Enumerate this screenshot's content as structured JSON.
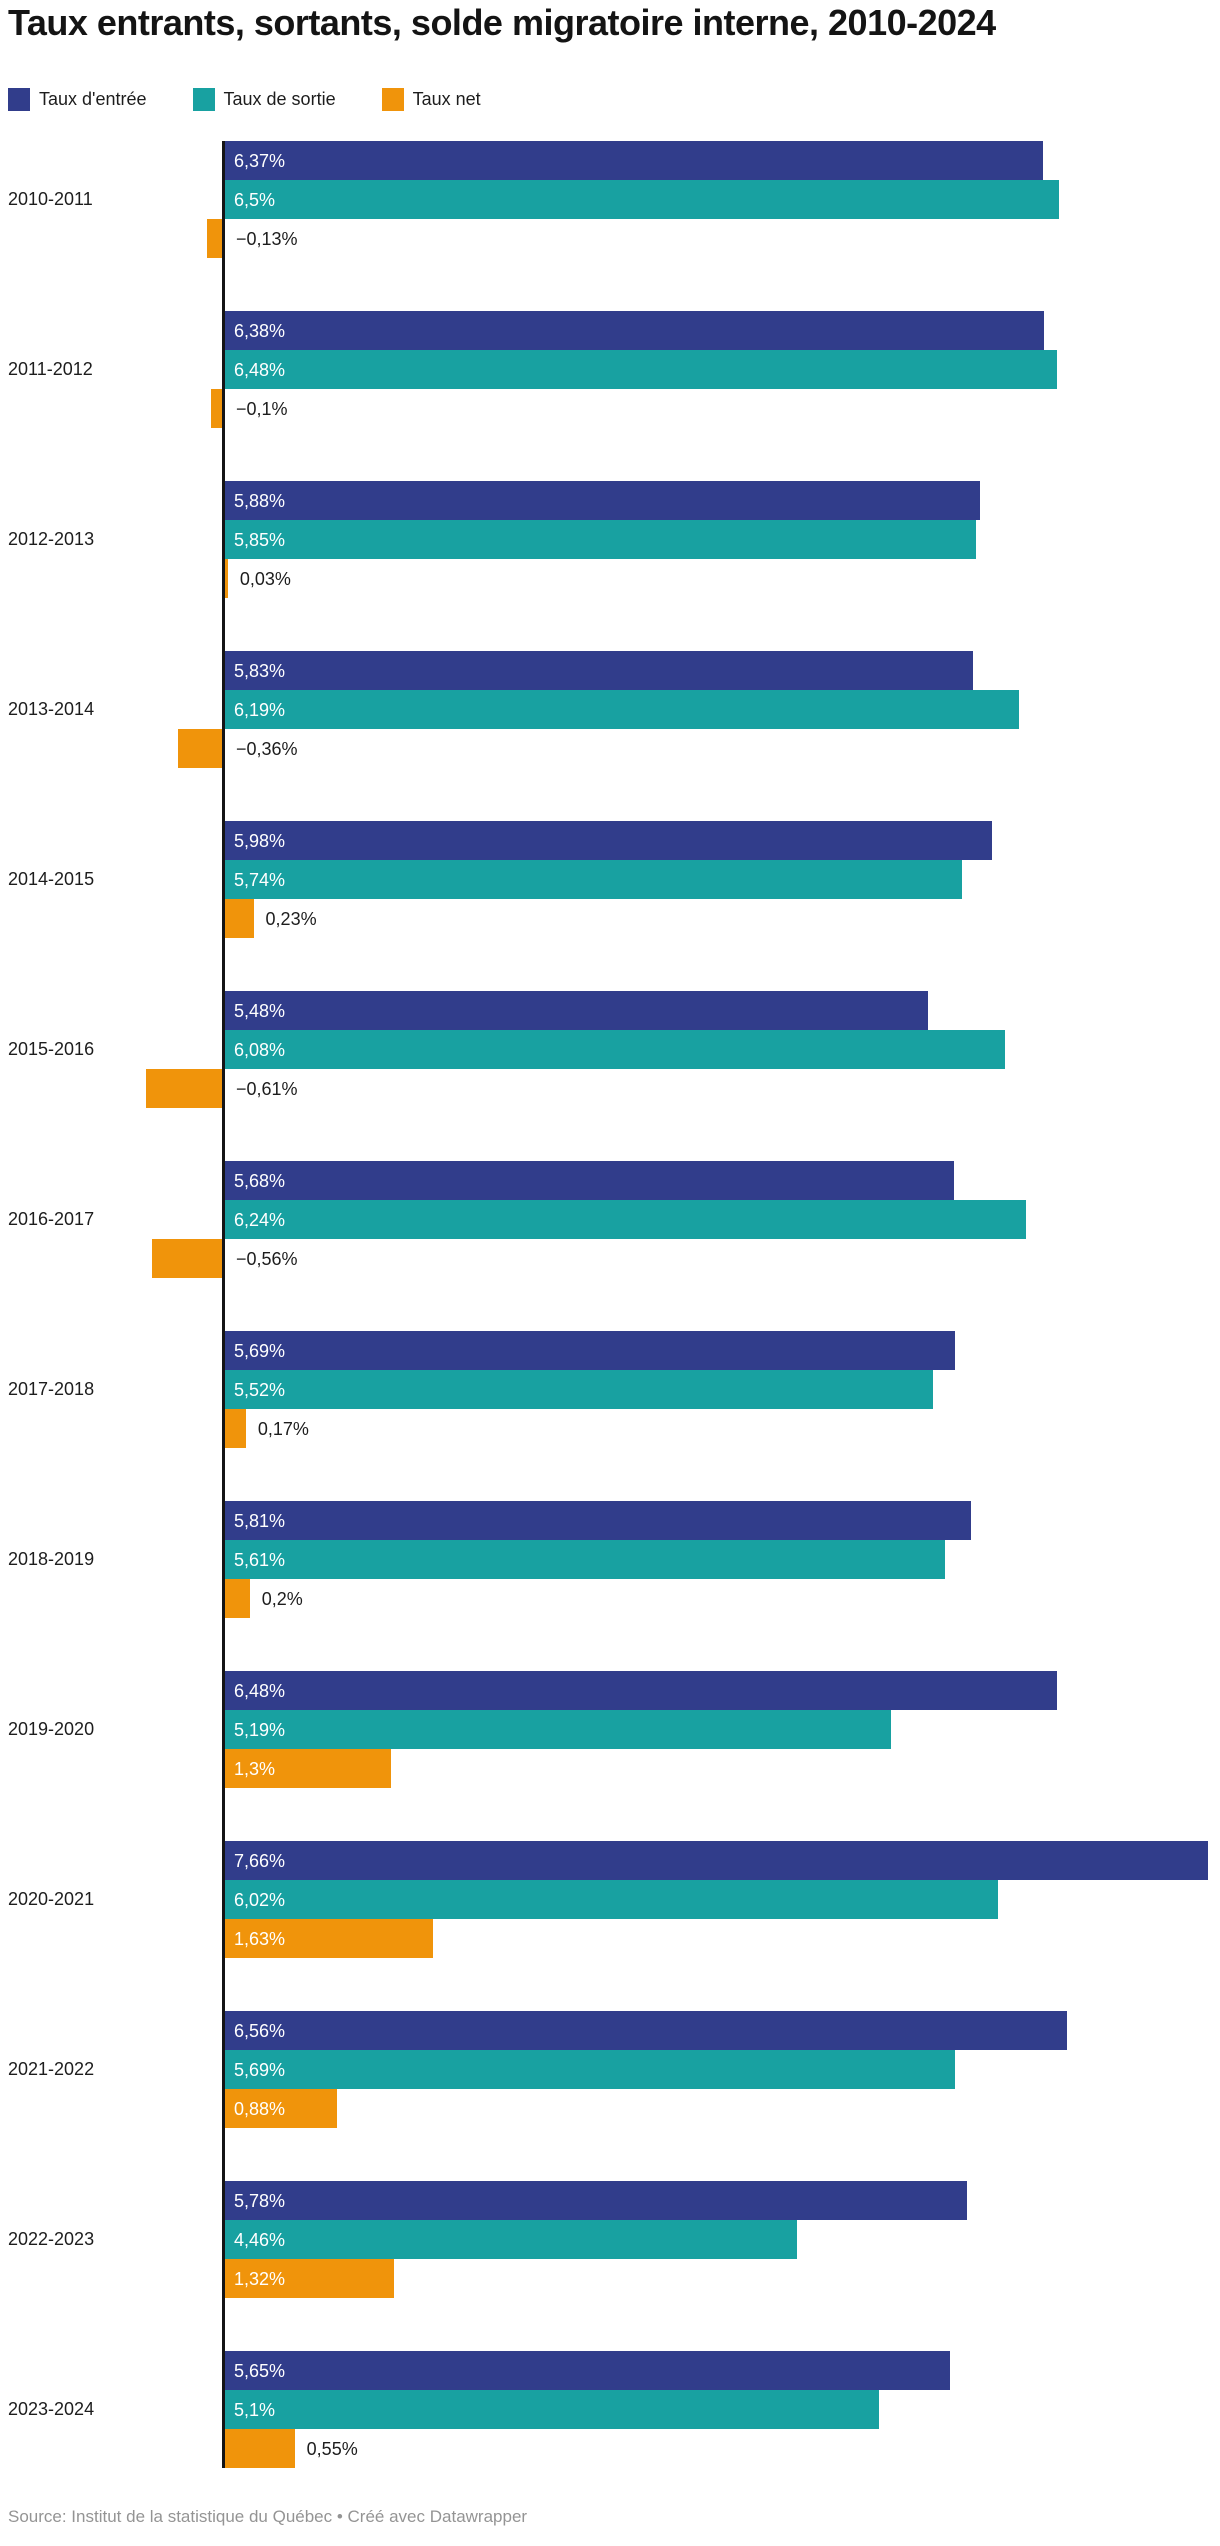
{
  "title": "Taux entrants, sortants, solde migratoire interne, 2010-2024",
  "legend": {
    "items": [
      {
        "key": "entree",
        "label": "Taux d'entrée",
        "color": "#313d8b"
      },
      {
        "key": "sortie",
        "label": "Taux de sortie",
        "color": "#18a1a1"
      },
      {
        "key": "net",
        "label": "Taux net",
        "color": "#f0940b"
      }
    ]
  },
  "chart_data": {
    "type": "bar",
    "orientation": "horizontal",
    "grouped": true,
    "title": "Taux entrants, sortants, solde migratoire interne, 2010-2024",
    "xlabel": "",
    "ylabel": "",
    "xlim": [
      -0.7,
      7.75
    ],
    "grid": false,
    "legend_position": "top",
    "value_labels_shown": true,
    "categories": [
      "2010-2011",
      "2011-2012",
      "2012-2013",
      "2013-2014",
      "2014-2015",
      "2015-2016",
      "2016-2017",
      "2017-2018",
      "2018-2019",
      "2019-2020",
      "2020-2021",
      "2021-2022",
      "2022-2023",
      "2023-2024"
    ],
    "series": [
      {
        "name": "Taux d'entrée",
        "key": "entree",
        "color": "#313d8b",
        "values": [
          6.37,
          6.38,
          5.88,
          5.83,
          5.98,
          5.48,
          5.68,
          5.69,
          5.81,
          6.48,
          7.66,
          6.56,
          5.78,
          5.65
        ],
        "labels": [
          "6,37%",
          "6,38%",
          "5,88%",
          "5,83%",
          "5,98%",
          "5,48%",
          "5,68%",
          "5,69%",
          "5,81%",
          "6,48%",
          "7,66%",
          "6,56%",
          "5,78%",
          "5,65%"
        ]
      },
      {
        "name": "Taux de sortie",
        "key": "sortie",
        "color": "#18a1a1",
        "values": [
          6.5,
          6.48,
          5.85,
          6.19,
          5.74,
          6.08,
          6.24,
          5.52,
          5.61,
          5.19,
          6.02,
          5.69,
          4.46,
          5.1
        ],
        "labels": [
          "6,5%",
          "6,48%",
          "5,85%",
          "6,19%",
          "5,74%",
          "6,08%",
          "6,24%",
          "5,52%",
          "5,61%",
          "5,19%",
          "6,02%",
          "5,69%",
          "4,46%",
          "5,1%"
        ]
      },
      {
        "name": "Taux net",
        "key": "net",
        "color": "#f0940b",
        "values": [
          -0.13,
          -0.1,
          0.03,
          -0.36,
          0.23,
          -0.61,
          -0.56,
          0.17,
          0.2,
          1.3,
          1.63,
          0.88,
          1.32,
          0.55
        ],
        "labels": [
          "−0,13%",
          "−0,1%",
          "0,03%",
          "−0,36%",
          "0,23%",
          "−0,61%",
          "−0,56%",
          "0,17%",
          "0,2%",
          "1,3%",
          "1,63%",
          "0,88%",
          "1,32%",
          "0,55%"
        ]
      }
    ]
  },
  "footer": "Source: Institut de la statistique du Québec • Créé avec Datawrapper"
}
